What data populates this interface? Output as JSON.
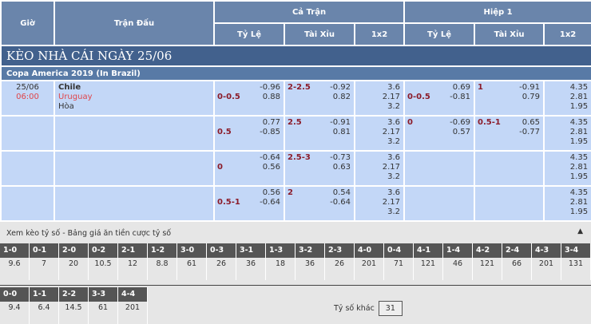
{
  "header": {
    "gio": "Giờ",
    "tran_dau": "Trận Đấu",
    "ca_tran": "Cả Trận",
    "hiep1": "Hiệp 1",
    "ty_le": "Tỷ Lệ",
    "tai_xiu": "Tài Xỉu",
    "x12": "1x2"
  },
  "title": "KÈO NHÀ CÁI NGÀY 25/06",
  "league": "Copa America 2019 (In Brazil)",
  "match": {
    "date": "25/06",
    "time": "06:00",
    "home": "Chile",
    "away": "Uruguay",
    "draw": "Hòa"
  },
  "rows": [
    {
      "ft_hc": "0-0.5",
      "ft_hc_v1": "-0.96",
      "ft_hc_v2": "0.88",
      "ft_ou": "2-2.5",
      "ft_ou_v1": "-0.92",
      "ft_ou_v2": "0.82",
      "ft_1": "3.6",
      "ft_2": "2.17",
      "ft_x": "3.2",
      "h1_hc": "0-0.5",
      "h1_hc_v1": "0.69",
      "h1_hc_v2": "-0.81",
      "h1_ou": "1",
      "h1_ou_v1": "-0.91",
      "h1_ou_v2": "0.79",
      "h1_1": "4.35",
      "h1_2": "2.81",
      "h1_x": "1.95"
    },
    {
      "ft_hc": "0.5",
      "ft_hc_v1": "0.77",
      "ft_hc_v2": "-0.85",
      "ft_ou": "2.5",
      "ft_ou_v1": "-0.91",
      "ft_ou_v2": "0.81",
      "ft_1": "3.6",
      "ft_2": "2.17",
      "ft_x": "3.2",
      "h1_hc": "0",
      "h1_hc_v1": "-0.69",
      "h1_hc_v2": "0.57",
      "h1_ou": "0.5-1",
      "h1_ou_v1": "0.65",
      "h1_ou_v2": "-0.77",
      "h1_1": "4.35",
      "h1_2": "2.81",
      "h1_x": "1.95"
    },
    {
      "ft_hc": "0",
      "ft_hc_v1": "-0.64",
      "ft_hc_v2": "0.56",
      "ft_ou": "2.5-3",
      "ft_ou_v1": "-0.73",
      "ft_ou_v2": "0.63",
      "ft_1": "3.6",
      "ft_2": "2.17",
      "ft_x": "3.2",
      "h1_1": "4.35",
      "h1_2": "2.81",
      "h1_x": "1.95"
    },
    {
      "ft_hc": "0.5-1",
      "ft_hc_v1": "0.56",
      "ft_hc_v2": "-0.64",
      "ft_ou": "2",
      "ft_ou_v1": "0.54",
      "ft_ou_v2": "-0.64",
      "ft_1": "3.6",
      "ft_2": "2.17",
      "ft_x": "3.2",
      "h1_1": "4.35",
      "h1_2": "2.81",
      "h1_x": "1.95"
    }
  ],
  "correct_score": {
    "title": "Xem kèo tỷ số - Bảng giá ăn tiền cược tỷ số",
    "row1": [
      [
        "1-0",
        "9.6"
      ],
      [
        "0-1",
        "7"
      ],
      [
        "2-0",
        "20"
      ],
      [
        "0-2",
        "10.5"
      ],
      [
        "2-1",
        "12"
      ],
      [
        "1-2",
        "8.8"
      ],
      [
        "3-0",
        "61"
      ],
      [
        "0-3",
        "26"
      ],
      [
        "3-1",
        "36"
      ],
      [
        "1-3",
        "18"
      ],
      [
        "3-2",
        "36"
      ],
      [
        "2-3",
        "26"
      ],
      [
        "4-0",
        "201"
      ],
      [
        "0-4",
        "71"
      ],
      [
        "4-1",
        "121"
      ],
      [
        "1-4",
        "46"
      ],
      [
        "4-2",
        "121"
      ],
      [
        "2-4",
        "66"
      ],
      [
        "4-3",
        "201"
      ],
      [
        "3-4",
        "131"
      ]
    ],
    "row2": [
      [
        "0-0",
        "9.4"
      ],
      [
        "1-1",
        "6.4"
      ],
      [
        "2-2",
        "14.5"
      ],
      [
        "3-3",
        "61"
      ],
      [
        "4-4",
        "201"
      ]
    ],
    "other_label": "Tỷ số khác",
    "other_value": "31"
  }
}
